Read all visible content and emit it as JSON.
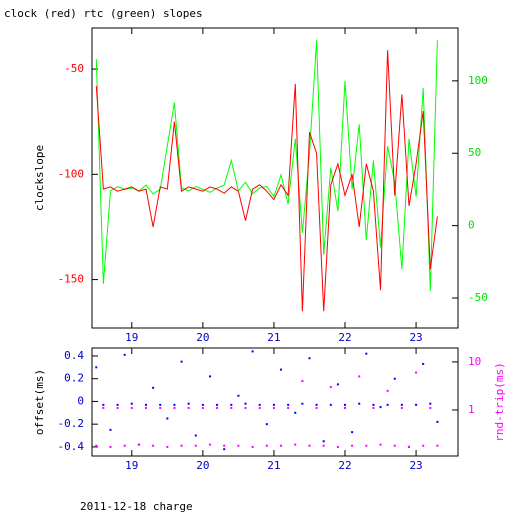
{
  "chart_data": [
    {
      "type": "line",
      "title": "clock (red) rtc (green) slopes",
      "ylabel": "clockslope",
      "x": [
        18.5,
        18.6,
        18.7,
        18.8,
        18.9,
        19.0,
        19.1,
        19.2,
        19.3,
        19.4,
        19.5,
        19.6,
        19.7,
        19.8,
        19.9,
        20.0,
        20.1,
        20.2,
        20.3,
        20.4,
        20.5,
        20.6,
        20.7,
        20.8,
        20.9,
        21.0,
        21.1,
        21.2,
        21.3,
        21.4,
        21.5,
        21.6,
        21.7,
        21.8,
        21.9,
        22.0,
        22.1,
        22.2,
        22.3,
        22.4,
        22.5,
        22.6,
        22.7,
        22.8,
        22.9,
        23.0,
        23.1,
        23.2,
        23.3
      ],
      "xlim": [
        18.44,
        23.59
      ],
      "ylim": [
        -173,
        -30.5
      ],
      "y2lim": [
        -70.7,
        136.5
      ],
      "xticks": [
        19,
        20,
        21,
        22,
        23
      ],
      "yticks": [
        -50,
        -100,
        -150
      ],
      "y2ticks": [
        100,
        50,
        0,
        -50
      ],
      "xtick_color": "#0000cc",
      "ytick_color": "#ff0000",
      "y2tick_color": "#00dd00",
      "series": [
        {
          "color": "#ff0000",
          "values": [
            -58,
            -107,
            -106,
            -108,
            -107,
            -106,
            -108,
            -107,
            -125,
            -106,
            -107,
            -75,
            -108,
            -106,
            -107,
            -108,
            -106,
            -107,
            -109,
            -106,
            -108,
            -122,
            -107,
            -105,
            -108,
            -112,
            -105,
            -110,
            -57,
            -165,
            -80,
            -90,
            -165,
            -105,
            -95,
            -110,
            -100,
            -125,
            -95,
            -108,
            -155,
            -41,
            -110,
            -62,
            -115,
            -95,
            -70,
            -145,
            -120
          ]
        },
        {
          "color": "#00ff00",
          "axis": "y2",
          "values": [
            115,
            -40,
            24,
            27,
            25,
            26,
            24,
            28,
            22,
            25,
            55,
            85,
            26,
            24,
            27,
            25,
            23,
            26,
            28,
            45,
            24,
            30,
            22,
            26,
            27,
            20,
            35,
            15,
            60,
            -5,
            50,
            128,
            -20,
            40,
            10,
            100,
            25,
            70,
            -10,
            45,
            -15,
            55,
            30,
            -30,
            60,
            20,
            95,
            -45,
            128
          ]
        }
      ]
    },
    {
      "type": "scatter",
      "ylabel": "offset(ms)",
      "y2label": "rnd-trip(ms)",
      "y2log": true,
      "x": [
        18.5,
        18.6,
        18.7,
        18.8,
        18.9,
        19.0,
        19.1,
        19.2,
        19.3,
        19.4,
        19.5,
        19.6,
        19.7,
        19.8,
        19.9,
        20.0,
        20.1,
        20.2,
        20.3,
        20.4,
        20.5,
        20.6,
        20.7,
        20.8,
        20.9,
        21.0,
        21.1,
        21.2,
        21.3,
        21.4,
        21.5,
        21.6,
        21.7,
        21.8,
        21.9,
        22.0,
        22.1,
        22.2,
        22.3,
        22.4,
        22.5,
        22.6,
        22.7,
        22.8,
        22.9,
        23.0,
        23.1,
        23.2,
        23.3
      ],
      "xlim": [
        18.44,
        23.59
      ],
      "ylim": [
        -0.48,
        0.47
      ],
      "y2lim": [
        0.11,
        19.5
      ],
      "xticks": [
        19,
        20,
        21,
        22,
        23
      ],
      "yticks": [
        0.4,
        0.2,
        0,
        -0.2,
        -0.4
      ],
      "y2ticks": [
        1,
        10
      ],
      "xtick_color": "#0000cc",
      "ytick_color": "#0000cc",
      "y2tick_color": "#ff00ff",
      "series": [
        {
          "color": "#0000ff",
          "values": [
            0.3,
            -0.03,
            -0.25,
            -0.03,
            0.41,
            -0.02,
            -0.38,
            -0.03,
            0.12,
            -0.03,
            -0.15,
            -0.03,
            0.35,
            -0.02,
            -0.3,
            -0.03,
            0.22,
            -0.03,
            -0.42,
            -0.03,
            0.05,
            -0.02,
            0.44,
            -0.03,
            -0.2,
            -0.03,
            0.28,
            -0.03,
            -0.1,
            -0.02,
            0.38,
            -0.03,
            -0.35,
            -0.03,
            0.15,
            -0.03,
            -0.27,
            -0.02,
            0.42,
            -0.03,
            -0.05,
            -0.03,
            0.2,
            -0.03,
            -0.4,
            -0.03,
            0.33,
            -0.02,
            -0.18
          ]
        },
        {
          "color": "#ff00ff",
          "axis": "y2",
          "values": [
            0.18,
            1.1,
            0.17,
            1.1,
            0.18,
            1.1,
            0.19,
            1.1,
            0.18,
            1.1,
            0.17,
            1.1,
            0.18,
            1.1,
            0.18,
            1.1,
            0.19,
            1.1,
            0.18,
            1.1,
            0.18,
            1.1,
            0.17,
            1.1,
            0.18,
            1.1,
            0.18,
            1.1,
            0.19,
            4,
            0.18,
            1.1,
            0.18,
            3,
            0.17,
            1.1,
            0.18,
            5,
            0.18,
            1.1,
            0.19,
            2.5,
            0.18,
            1.1,
            0.17,
            6,
            0.18,
            1.1,
            0.18
          ]
        }
      ]
    }
  ],
  "caption": "2011-12-18 charge"
}
